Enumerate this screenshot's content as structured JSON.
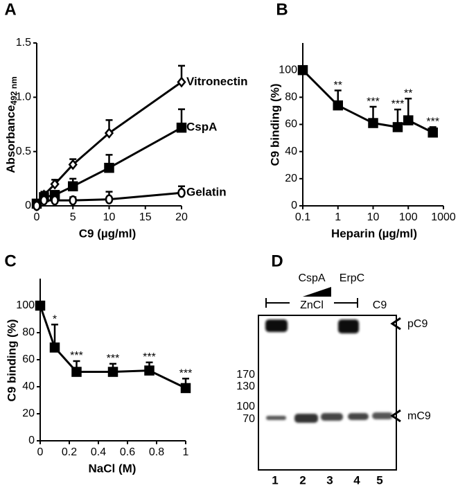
{
  "chart_data": [
    {
      "type": "line",
      "panel": "A",
      "ylabel": "Absorbance",
      "ylabel_subscript": "492 nm",
      "xlabel": "C9 (µg/ml)",
      "x": [
        0,
        1,
        2.5,
        5,
        10,
        20
      ],
      "series": [
        {
          "name": "Vitronectin",
          "color": "#000000",
          "marker": "diamond",
          "values": [
            0,
            0.1,
            0.2,
            0.38,
            0.67,
            1.14
          ],
          "errors": [
            0.02,
            0.03,
            0.04,
            0.05,
            0.12,
            0.15
          ]
        },
        {
          "name": "CspA",
          "color": "#000000",
          "marker": "square",
          "values": [
            0.02,
            0.08,
            0.1,
            0.18,
            0.35,
            0.72
          ],
          "errors": [
            0.02,
            0.03,
            0.03,
            0.07,
            0.12,
            0.17
          ]
        },
        {
          "name": "Gelatin",
          "color": "#000000",
          "marker": "circle",
          "values": [
            0,
            0.05,
            0.05,
            0.05,
            0.06,
            0.12
          ],
          "errors": [
            0.02,
            0.02,
            0.02,
            0.03,
            0.07,
            0.06
          ]
        }
      ],
      "xlim": [
        0,
        20
      ],
      "xticks": [
        0,
        5,
        10,
        15,
        20
      ],
      "ylim": [
        0,
        1.5
      ],
      "yticks": [
        0,
        0.5,
        {
          "value": 1,
          "label": "1.0"
        },
        1.5
      ]
    },
    {
      "type": "line",
      "panel": "B",
      "ylabel": "C9 binding (%)",
      "xlabel": "Heparin (µg/ml)",
      "xscale": "log",
      "x": [
        0.1,
        1,
        10,
        50,
        100,
        500
      ],
      "series": [
        {
          "name": null,
          "color": "#000000",
          "marker": "square",
          "values": [
            100,
            74,
            61,
            58,
            63,
            54
          ],
          "errors": [
            0,
            11,
            12,
            13,
            16,
            4
          ],
          "significance": [
            null,
            "**",
            "***",
            "***",
            "**",
            "***"
          ]
        }
      ],
      "xlim": [
        0.1,
        1000
      ],
      "xticks": [
        0.1,
        1,
        10,
        100,
        1000
      ],
      "ylim": [
        0,
        120
      ],
      "yticks": [
        0,
        20,
        40,
        60,
        80,
        100
      ]
    },
    {
      "type": "line",
      "panel": "C",
      "ylabel": "C9 binding (%)",
      "xlabel": "NaCl (M)",
      "x": [
        0,
        0.1,
        0.25,
        0.5,
        0.75,
        1
      ],
      "series": [
        {
          "name": null,
          "color": "#000000",
          "marker": "square",
          "values": [
            100,
            69,
            51,
            51,
            52,
            39
          ],
          "errors": [
            0,
            17,
            8,
            6,
            6,
            7
          ],
          "significance": [
            null,
            "*",
            "***",
            "***",
            "***",
            "***"
          ]
        }
      ],
      "xlim": [
        0,
        1
      ],
      "xticks": [
        0,
        0.2,
        0.4,
        0.6,
        0.8,
        1
      ],
      "ylim": [
        0,
        120
      ],
      "yticks": [
        0,
        20,
        40,
        60,
        80,
        100
      ]
    }
  ],
  "gel": {
    "panel": "D",
    "cspa": "CspA",
    "erpc": "ErpC",
    "zncl": "ZnCl",
    "c9": "C9",
    "bands": [
      "pC9",
      "mC9"
    ],
    "markers": [
      "170",
      "130",
      "100",
      "70"
    ],
    "lanes": [
      "1",
      "2",
      "3",
      "4",
      "5"
    ]
  }
}
